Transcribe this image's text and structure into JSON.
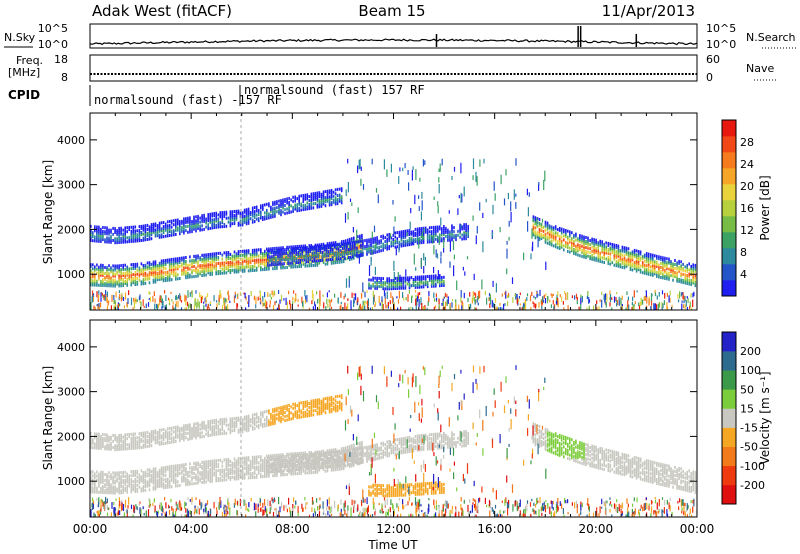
{
  "header": {
    "title": "Adak West (fitACF)",
    "beam": "Beam 15",
    "date": "11/Apr/2013"
  },
  "status_panels": {
    "nsky_label": "N.Sky",
    "nsearch_label": "N.Search",
    "freq_label_line1": "Freq.",
    "freq_label_line2": "[MHz]",
    "nave_label": "Nave",
    "cpid_label": "CPID",
    "nsky_ticks": [
      "10^5",
      "10^0"
    ],
    "nsearch_ticks": [
      "10^5",
      "10^0"
    ],
    "freq_ticks": [
      "18",
      "8"
    ],
    "nave_ticks": [
      "60",
      "0"
    ],
    "cpid_segments": [
      {
        "label": "normalsound (fast) -157 RF",
        "start_hour": 0.0,
        "end_hour": 6.0
      },
      {
        "label": "normalsound (fast) 157 RF",
        "start_hour": 6.0,
        "end_hour": 24.0
      }
    ]
  },
  "chart_data": [
    {
      "type": "heatmap",
      "name": "power-panel",
      "ylabel": "Slant Range [km]",
      "xlabel": "",
      "xlim": [
        0,
        24
      ],
      "ylim": [
        200,
        4600
      ],
      "yticks": [
        "1000",
        "2000",
        "3000",
        "4000"
      ],
      "xtick_values": [
        0,
        4,
        8,
        12,
        16,
        20,
        24
      ],
      "colorbar": {
        "label": "Power [dB]",
        "tick_labels": [
          "4",
          "8",
          "12",
          "16",
          "20",
          "24",
          "28"
        ],
        "colors": [
          "#1e1ef0",
          "#2455c8",
          "#2c8a9e",
          "#3ba263",
          "#76bc45",
          "#b6d03e",
          "#e9d33c",
          "#f7a527",
          "#f67a1e",
          "#f24716",
          "#e8180e"
        ]
      },
      "bands": [
        {
          "x": [
            0.0,
            1.0,
            2.0,
            3.0,
            4.0,
            5.0,
            6.0,
            7.0,
            8.0,
            9.0,
            10.0,
            10.8
          ],
          "y": [
            980,
            950,
            1000,
            1080,
            1160,
            1230,
            1280,
            1330,
            1380,
            1420,
            1500,
            1650
          ],
          "level": "strong"
        },
        {
          "x": [
            0.0,
            1.0,
            2.0,
            3.0,
            4.0,
            5.0,
            6.0,
            7.0,
            8.0,
            9.0,
            10.0
          ],
          "y": [
            1900,
            1850,
            1900,
            2000,
            2100,
            2200,
            2250,
            2400,
            2550,
            2650,
            2750
          ],
          "level": "weak"
        },
        {
          "x": [
            7.0,
            8.0,
            9.0,
            10.0,
            11.0,
            12.0,
            13.0,
            14.0,
            15.0
          ],
          "y": [
            1350,
            1400,
            1450,
            1500,
            1600,
            1750,
            1850,
            1900,
            1950
          ],
          "level": "weak"
        },
        {
          "x": [
            11.0,
            11.7,
            12.5,
            13.3,
            14.0
          ],
          "y": [
            800,
            780,
            800,
            830,
            860
          ],
          "level": "medium"
        },
        {
          "x": [
            17.5,
            18.5,
            19.5,
            20.5,
            21.5,
            22.5,
            23.3,
            24.0
          ],
          "y": [
            2050,
            1800,
            1600,
            1450,
            1300,
            1150,
            1050,
            950
          ],
          "level": "strong"
        }
      ]
    },
    {
      "type": "heatmap",
      "name": "velocity-panel",
      "ylabel": "Slant Range [km]",
      "xlabel": "Time UT",
      "xlim": [
        0,
        24
      ],
      "ylim": [
        200,
        4600
      ],
      "yticks": [
        "1000",
        "2000",
        "3000",
        "4000"
      ],
      "xtick_labels": [
        "00:00",
        "04:00",
        "08:00",
        "12:00",
        "16:00",
        "20:00",
        "00:00"
      ],
      "xtick_values": [
        0,
        4,
        8,
        12,
        16,
        20,
        24
      ],
      "colorbar": {
        "label": "Velocity [m s⁻¹]",
        "tick_labels": [
          "200",
          "100",
          "50",
          "15",
          "-15",
          "-50",
          "-100",
          "-200"
        ],
        "colors": [
          "#2222c8",
          "#2d6b8f",
          "#3b9a4a",
          "#7ccd3c",
          "#c8c8c0",
          "#f5a623",
          "#f27a1a",
          "#ef3a10",
          "#e01010"
        ]
      }
    }
  ]
}
